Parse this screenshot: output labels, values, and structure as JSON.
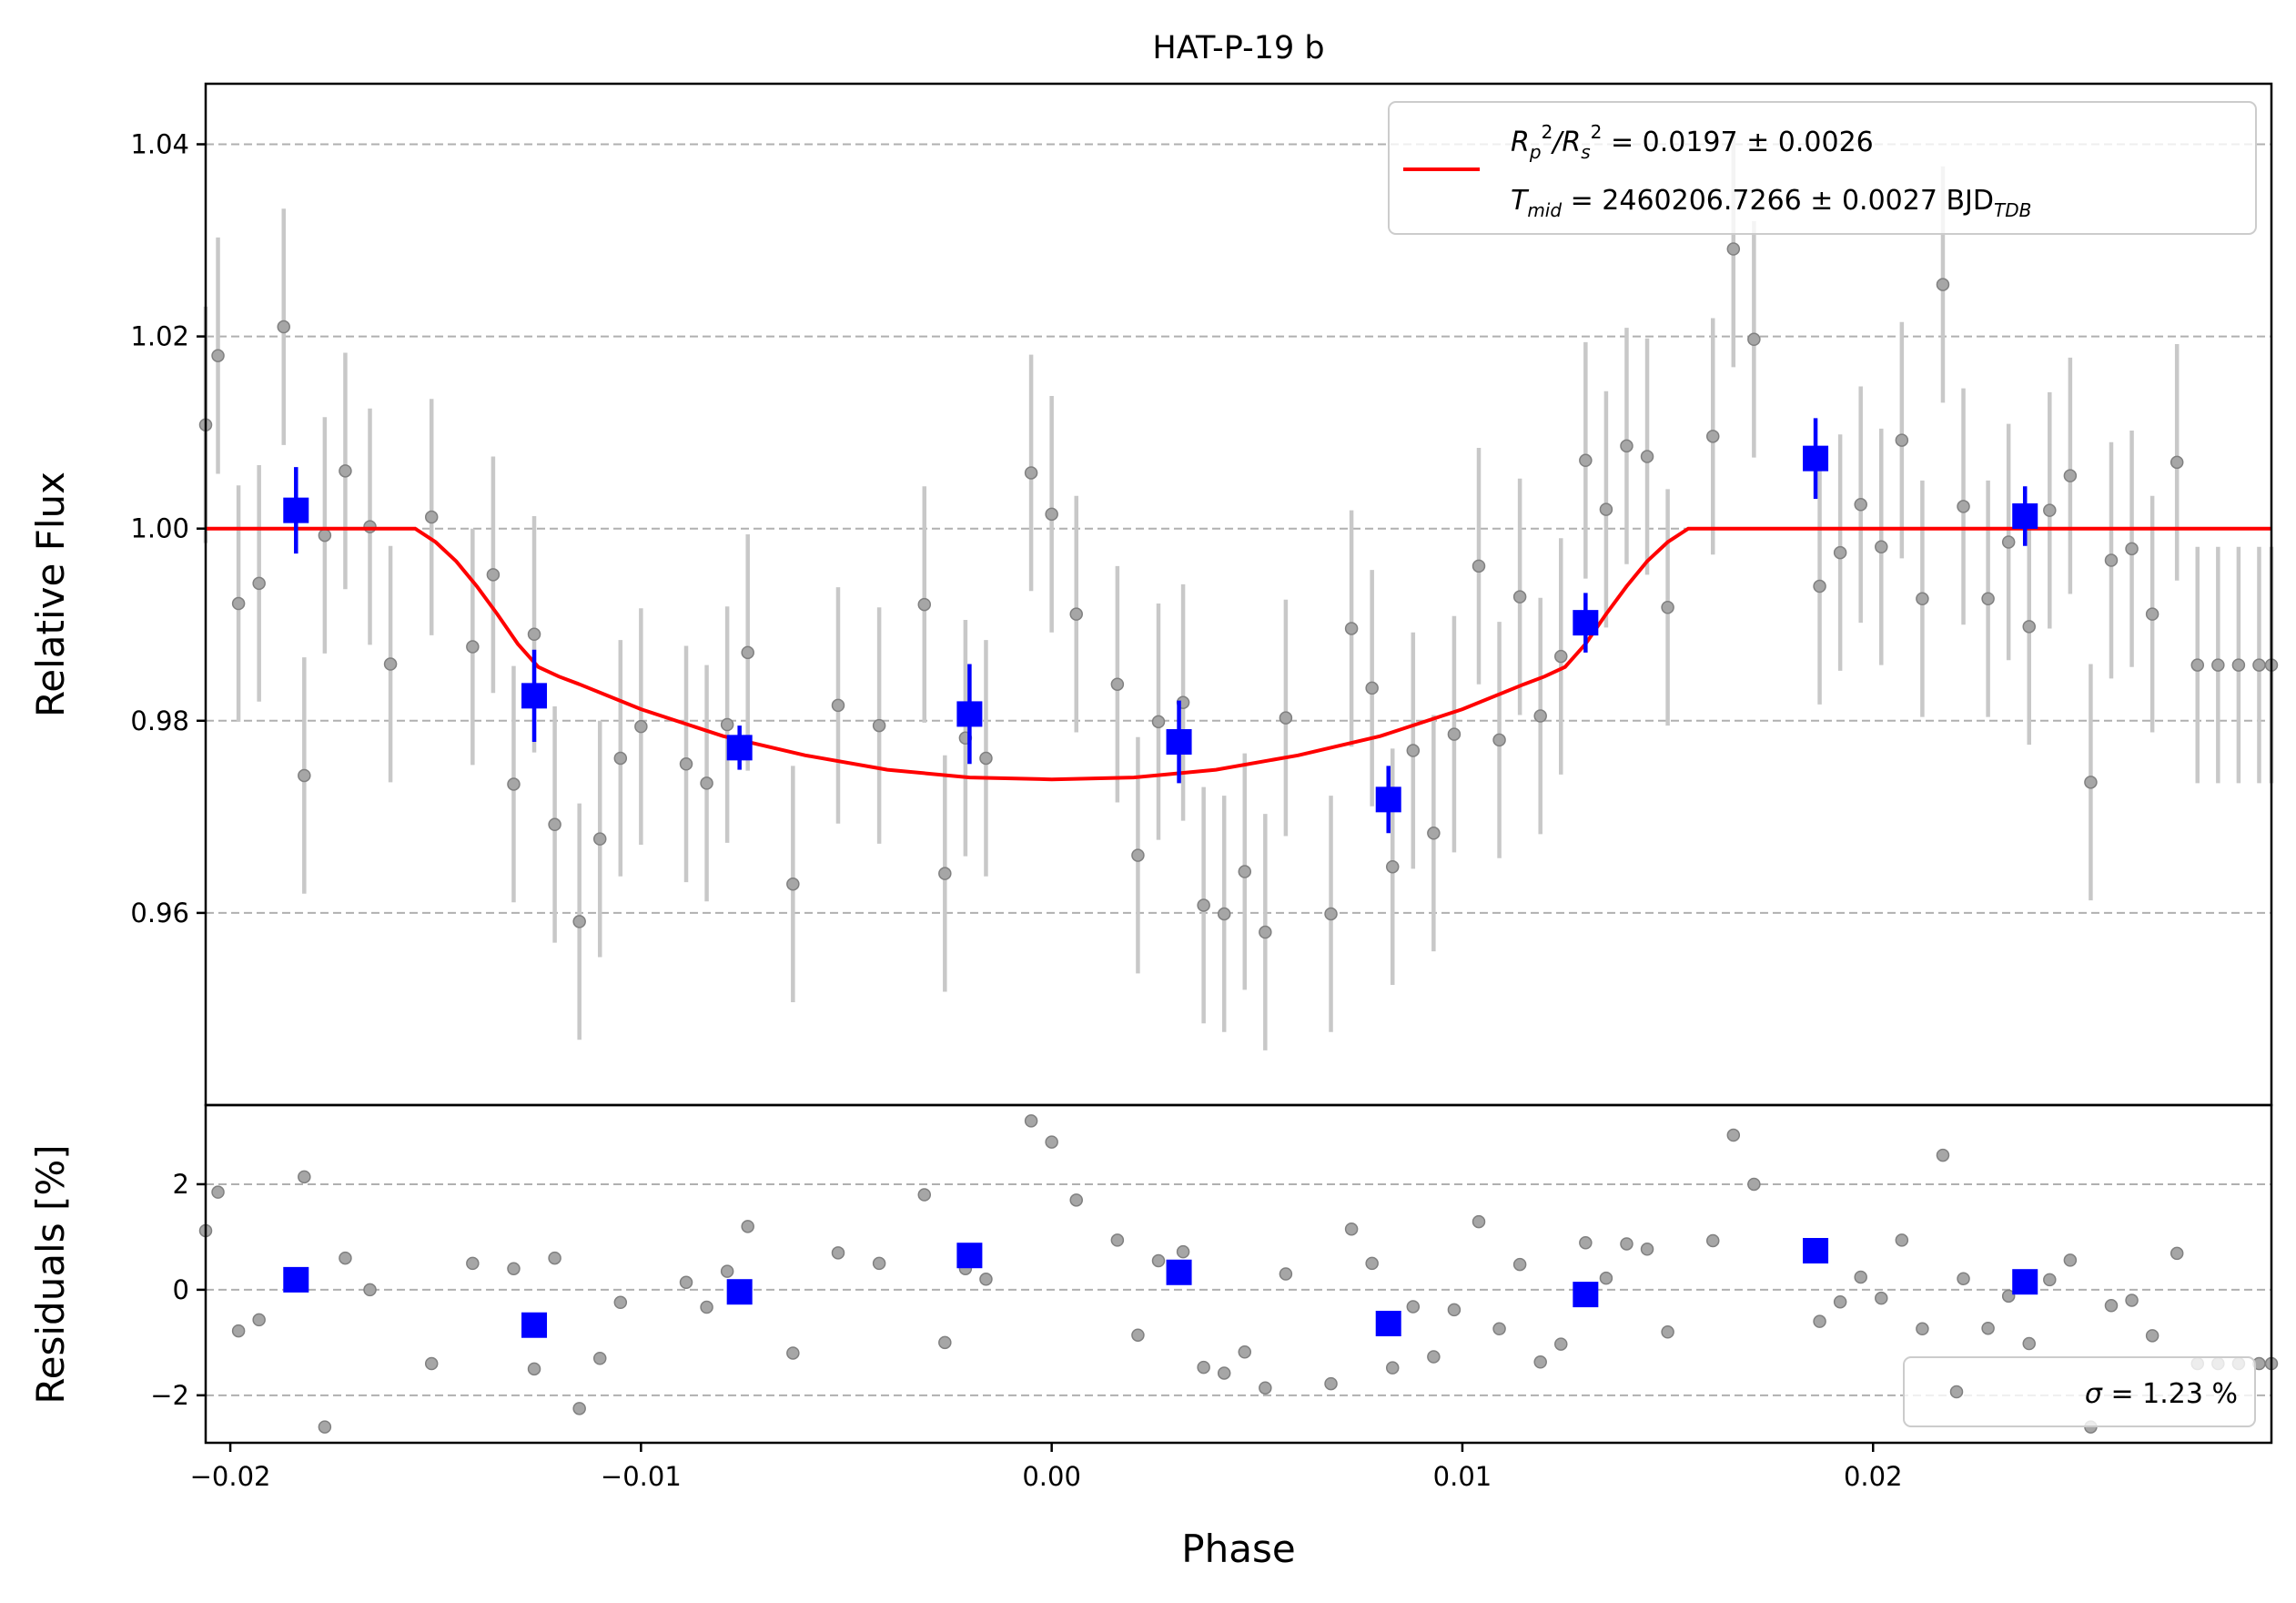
{
  "chart_data": {
    "type": "scatter",
    "title": "HAT-P-19 b",
    "xlabel": "Phase",
    "xlim": [
      -0.0206,
      0.0297
    ],
    "xticks": [
      -0.02,
      -0.01,
      0.0,
      0.01,
      0.02
    ],
    "xtick_labels": [
      "−0.02",
      "−0.01",
      "0.00",
      "0.01",
      "0.02"
    ],
    "grid": true,
    "colors": {
      "raw": "#808080",
      "raw_err": "#c8c8c8",
      "binned": "#0000ff",
      "model": "#ff0000",
      "grid": "#b0b0b0"
    },
    "top_panel": {
      "ylabel": "Relative Flux",
      "ylim": [
        0.94,
        1.0463
      ],
      "yticks": [
        0.96,
        0.98,
        1.0,
        1.02,
        1.04
      ],
      "ytick_labels": [
        "0.96",
        "0.98",
        "1.00",
        "1.02",
        "1.04"
      ],
      "legend": {
        "position": "top-right",
        "line1_parts": [
          "R",
          "p",
          "2",
          "/R",
          "s",
          "2",
          " = 0.0197 ± 0.0026"
        ],
        "line2_parts": [
          "T",
          "mid",
          " = 2460206.7266 ± 0.0027 BJD",
          "TDB"
        ]
      },
      "raw_points": {
        "x": [
          -0.0206,
          -0.0203,
          -0.0198,
          -0.0193,
          -0.0187,
          -0.0182,
          -0.0177,
          -0.0172,
          -0.0166,
          -0.0161,
          -0.0151,
          -0.0141,
          -0.0136,
          -0.0131,
          -0.0126,
          -0.0121,
          -0.0115,
          -0.011,
          -0.0105,
          -0.01,
          -0.0089,
          -0.0084,
          -0.0079,
          -0.0074,
          -0.0063,
          -0.0052,
          -0.0042,
          -0.0031,
          -0.0026,
          -0.0021,
          -0.0016,
          -0.0005,
          0.0,
          0.0006,
          0.0016,
          0.0021,
          0.0026,
          0.0032,
          0.0037,
          0.0042,
          0.0047,
          0.0052,
          0.0057,
          0.0068,
          0.0073,
          0.0078,
          0.0083,
          0.0088,
          0.0093,
          0.0098,
          0.0104,
          0.0109,
          0.0114,
          0.0119,
          0.0124,
          0.013,
          0.0135,
          0.014,
          0.0145,
          0.015,
          0.0161,
          0.0166,
          0.0171,
          0.0187,
          0.0192,
          0.0197,
          0.0202,
          0.0207,
          0.0212,
          0.0217,
          0.0222,
          0.0228,
          0.0233,
          0.0238,
          0.0243,
          0.0248,
          0.0253,
          0.0258,
          0.0263,
          0.0268,
          0.0274,
          0.0279,
          0.0284,
          0.0289,
          0.0294,
          0.0297
        ],
        "y": [
          1.0108,
          1.018,
          0.9922,
          0.9943,
          1.021,
          0.9743,
          0.9993,
          1.006,
          1.0002,
          0.9859,
          1.0012,
          0.9877,
          0.9952,
          0.9734,
          0.989,
          0.9692,
          0.9591,
          0.9677,
          0.9761,
          0.9794,
          0.9755,
          0.9735,
          0.9796,
          0.9871,
          0.963,
          0.9816,
          0.9795,
          0.9921,
          0.9641,
          0.9782,
          0.9761,
          1.0058,
          1.0015,
          0.9911,
          0.9838,
          0.966,
          0.9799,
          0.9819,
          0.9608,
          0.9599,
          0.9643,
          0.958,
          0.9803,
          0.9599,
          0.9896,
          0.9834,
          0.9648,
          0.9769,
          0.9683,
          0.9786,
          0.9961,
          0.978,
          0.9929,
          0.9805,
          0.9867,
          1.0071,
          1.002,
          1.0086,
          1.0075,
          0.9918,
          1.0096,
          1.0291,
          1.0197,
          0.994,
          0.9975,
          1.0025,
          0.9981,
          1.0092,
          0.9927,
          1.0254,
          1.0023,
          0.9927,
          0.9986,
          0.9898,
          1.0019,
          1.0055,
          0.9736,
          0.9967,
          0.9979,
          0.9911,
          1.0069,
          0.9858,
          0.9858,
          0.9858,
          0.9858,
          0.9858
        ],
        "err": 0.0123
      },
      "binned": {
        "x": [
          -0.0184,
          -0.0126,
          -0.0076,
          -0.002,
          0.0031,
          0.0082,
          0.013,
          0.0186,
          0.0237
        ],
        "y": [
          1.0019,
          0.9826,
          0.9772,
          0.9807,
          0.9778,
          0.9718,
          0.9902,
          1.0073,
          1.0013
        ],
        "err": [
          0.0045,
          0.0048,
          0.0023,
          0.0052,
          0.0043,
          0.0035,
          0.0031,
          0.0042,
          0.0031
        ]
      },
      "model": {
        "x": [
          -0.0206,
          -0.0155,
          -0.015,
          -0.0145,
          -0.014,
          -0.0135,
          -0.013,
          -0.0125,
          -0.012,
          -0.0115,
          -0.01,
          -0.008,
          -0.006,
          -0.004,
          -0.002,
          0.0,
          0.002,
          0.004,
          0.006,
          0.008,
          0.01,
          0.0115,
          0.012,
          0.0125,
          0.013,
          0.0135,
          0.014,
          0.0145,
          0.015,
          0.0155,
          0.0297
        ],
        "y": [
          1.0,
          1.0,
          0.9986,
          0.9966,
          0.994,
          0.9911,
          0.988,
          0.9856,
          0.9846,
          0.9838,
          0.9812,
          0.9784,
          0.9764,
          0.9749,
          0.9741,
          0.9739,
          0.9741,
          0.9749,
          0.9764,
          0.9784,
          0.9812,
          0.9838,
          0.9846,
          0.9856,
          0.988,
          0.9911,
          0.994,
          0.9966,
          0.9986,
          1.0,
          1.0
        ]
      }
    },
    "bottom_panel": {
      "ylabel": "Residuals [%]",
      "ylim": [
        -2.9,
        3.5
      ],
      "yticks": [
        -2,
        0,
        2
      ],
      "ytick_labels": [
        "−2",
        "0",
        "2"
      ],
      "legend": {
        "position": "bottom-right",
        "parts": [
          "σ",
          " = 1.23 %"
        ]
      },
      "raw_points": {
        "x": [
          -0.0206,
          -0.0203,
          -0.0198,
          -0.0193,
          -0.0182,
          -0.0177,
          -0.0172,
          -0.0166,
          -0.0151,
          -0.0141,
          -0.0131,
          -0.0126,
          -0.0121,
          -0.0115,
          -0.011,
          -0.0105,
          -0.0089,
          -0.0084,
          -0.0079,
          -0.0074,
          -0.0063,
          -0.0052,
          -0.0042,
          -0.0031,
          -0.0026,
          -0.0021,
          -0.0016,
          -0.0005,
          0.0,
          0.0006,
          0.0016,
          0.0021,
          0.0026,
          0.0032,
          0.0037,
          0.0042,
          0.0047,
          0.0052,
          0.0057,
          0.0068,
          0.0073,
          0.0078,
          0.0083,
          0.0088,
          0.0093,
          0.0098,
          0.0104,
          0.0109,
          0.0114,
          0.0119,
          0.0124,
          0.013,
          0.0135,
          0.014,
          0.0145,
          0.015,
          0.0161,
          0.0166,
          0.0171,
          0.0187,
          0.0192,
          0.0197,
          0.0202,
          0.0207,
          0.0212,
          0.0217,
          0.0222,
          0.0228,
          0.0233,
          0.0238,
          0.0243,
          0.0248,
          0.0253,
          0.0258,
          0.0263,
          0.0268,
          0.0274,
          0.0279,
          0.0284,
          0.0289,
          0.0294,
          0.0297
        ],
        "y": [
          1.12,
          1.85,
          -0.78,
          -0.57,
          2.14,
          -2.6,
          0.6,
          0.0,
          -1.4,
          0.5,
          0.4,
          -1.5,
          0.6,
          -2.25,
          -1.3,
          -0.24,
          0.14,
          -0.33,
          0.35,
          1.2,
          -1.2,
          0.7,
          0.5,
          1.8,
          -1.0,
          0.4,
          0.2,
          3.2,
          2.8,
          1.7,
          0.94,
          -0.86,
          0.55,
          0.72,
          -1.47,
          -1.58,
          -1.18,
          -1.86,
          0.3,
          -1.78,
          1.15,
          0.5,
          -1.48,
          -0.32,
          -1.27,
          -0.38,
          1.29,
          -0.74,
          0.48,
          -1.37,
          -1.03,
          0.89,
          0.22,
          0.87,
          0.77,
          -0.8,
          0.93,
          2.93,
          2.0,
          -0.6,
          -0.23,
          0.24,
          -0.16,
          0.94,
          -0.74,
          2.55,
          0.21,
          -0.73,
          -0.12,
          -1.02,
          0.19,
          0.56,
          -2.6,
          -0.3,
          -0.2,
          -0.87,
          0.69,
          -1.4,
          -1.4,
          -1.4,
          -1.4,
          -1.4
        ]
      },
      "binned": {
        "x": [
          -0.0184,
          -0.0126,
          -0.0076,
          -0.002,
          0.0031,
          0.0082,
          0.013,
          0.0186,
          0.0237
        ],
        "y": [
          0.19,
          -0.67,
          -0.04,
          0.65,
          0.33,
          -0.64,
          -0.09,
          0.74,
          0.15
        ]
      }
    }
  }
}
